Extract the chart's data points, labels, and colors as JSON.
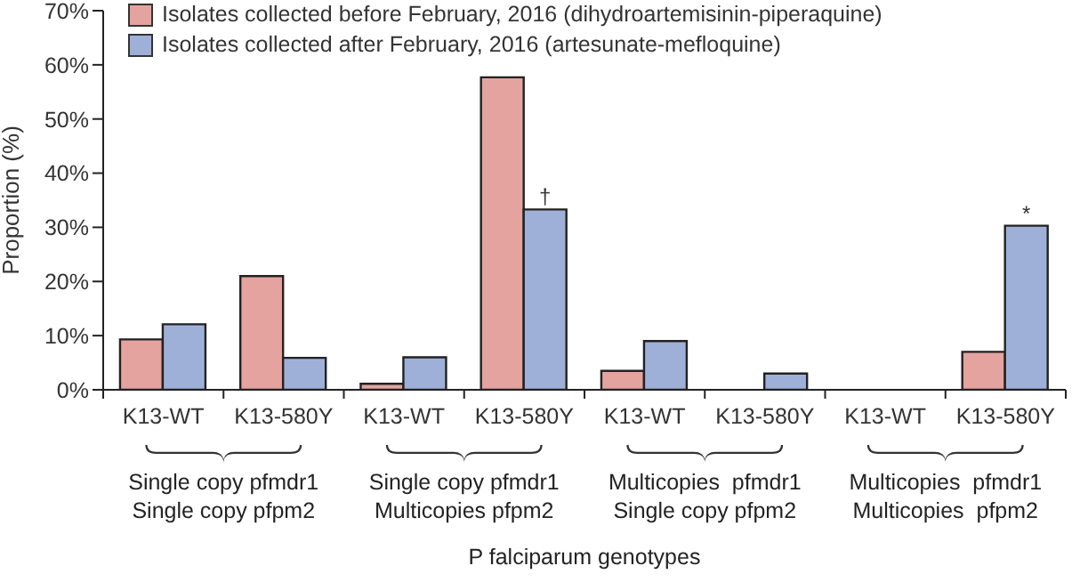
{
  "chart_data": {
    "type": "bar",
    "categories": [
      "K13-WT",
      "K13-580Y",
      "K13-WT",
      "K13-580Y",
      "K13-WT",
      "K13-580Y",
      "K13-WT",
      "K13-580Y"
    ],
    "series": [
      {
        "name": "Isolates collected before February, 2016 (dihydroartemisinin-piperaquine)",
        "color": "#e5a39f",
        "values": [
          9.3,
          21,
          1.1,
          57.7,
          3.5,
          0,
          0,
          7
        ]
      },
      {
        "name": "Isolates collected after February, 2016 (artesunate-mefloquine)",
        "color": "#9fb0d8",
        "values": [
          12.1,
          5.9,
          6,
          33.3,
          9,
          3,
          0,
          30.3
        ],
        "value_labels": [
          null,
          null,
          null,
          "†",
          null,
          null,
          null,
          "*"
        ]
      }
    ],
    "ylim": [
      0,
      70
    ],
    "yticks": [
      {
        "value": 0,
        "label": "0%"
      },
      {
        "value": 10,
        "label": "10%"
      },
      {
        "value": 20,
        "label": "20%"
      },
      {
        "value": 30,
        "label": "30%"
      },
      {
        "value": 40,
        "label": "40%"
      },
      {
        "value": 50,
        "label": "50%"
      },
      {
        "value": 60,
        "label": "60%"
      },
      {
        "value": 70,
        "label": "70%"
      }
    ],
    "ylabel": "Proportion (%)",
    "annotations": [
      "Single copy pfmdr1\nSingle copy pfpm2",
      "Single copy pfmdr1\nMulticopies pfpm2",
      "Multicopies  pfmdr1\nSingle copy pfpm2",
      "Multicopies  pfmdr1\nMulticopies  pfpm2",
      "P falciparum genotypes"
    ],
    "legend": "top left",
    "grid": false
  }
}
